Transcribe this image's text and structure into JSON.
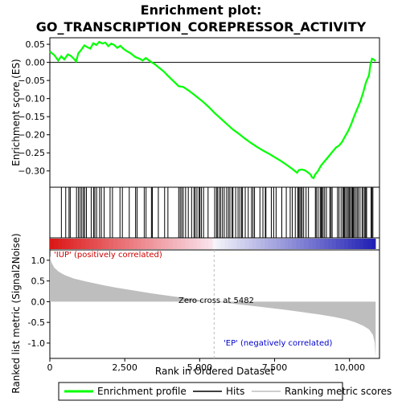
{
  "title_line1": "Enrichment plot:",
  "title_line2": "GO_TRANSCRIPTION_COREPRESSOR_ACTIVITY",
  "colors": {
    "enrichment_line": "#00ff00",
    "hits": "#000000",
    "ranking_fill": "#bebebe",
    "pos_label": "#cc0000",
    "neg_label": "#0000cc",
    "zero_cross_line": "#bbbbbb"
  },
  "chart_data": [
    {
      "type": "line",
      "name": "enrichment",
      "ylabel": "Enrichment score (ES)",
      "xlim": [
        0,
        11000
      ],
      "ylim": [
        -0.345,
        0.068
      ],
      "yticks": [
        0.05,
        0.0,
        -0.05,
        -0.1,
        -0.15,
        -0.2,
        -0.25,
        -0.3
      ],
      "ytick_labels": [
        "0.05",
        "0.00",
        "−0.05",
        "−0.10",
        "−0.15",
        "−0.20",
        "−0.25",
        "−0.30"
      ],
      "points": [
        [
          0,
          0.03
        ],
        [
          150,
          0.02
        ],
        [
          280,
          0.005
        ],
        [
          380,
          0.017
        ],
        [
          480,
          0.008
        ],
        [
          600,
          0.022
        ],
        [
          700,
          0.018
        ],
        [
          800,
          0.01
        ],
        [
          880,
          0.003
        ],
        [
          950,
          0.025
        ],
        [
          1050,
          0.035
        ],
        [
          1150,
          0.047
        ],
        [
          1250,
          0.042
        ],
        [
          1350,
          0.038
        ],
        [
          1450,
          0.053
        ],
        [
          1550,
          0.048
        ],
        [
          1650,
          0.057
        ],
        [
          1750,
          0.052
        ],
        [
          1850,
          0.055
        ],
        [
          1950,
          0.045
        ],
        [
          2050,
          0.052
        ],
        [
          2150,
          0.048
        ],
        [
          2250,
          0.04
        ],
        [
          2350,
          0.046
        ],
        [
          2450,
          0.038
        ],
        [
          2550,
          0.032
        ],
        [
          2700,
          0.025
        ],
        [
          2850,
          0.015
        ],
        [
          3000,
          0.01
        ],
        [
          3100,
          0.005
        ],
        [
          3200,
          0.012
        ],
        [
          3350,
          0.003
        ],
        [
          3500,
          -0.005
        ],
        [
          3650,
          -0.015
        ],
        [
          3800,
          -0.025
        ],
        [
          3950,
          -0.038
        ],
        [
          4100,
          -0.05
        ],
        [
          4200,
          -0.058
        ],
        [
          4300,
          -0.066
        ],
        [
          4450,
          -0.068
        ],
        [
          4600,
          -0.076
        ],
        [
          4750,
          -0.085
        ],
        [
          4900,
          -0.095
        ],
        [
          5100,
          -0.108
        ],
        [
          5300,
          -0.123
        ],
        [
          5500,
          -0.14
        ],
        [
          5700,
          -0.155
        ],
        [
          5900,
          -0.17
        ],
        [
          6100,
          -0.185
        ],
        [
          6300,
          -0.197
        ],
        [
          6500,
          -0.21
        ],
        [
          6700,
          -0.222
        ],
        [
          6900,
          -0.233
        ],
        [
          7100,
          -0.243
        ],
        [
          7300,
          -0.252
        ],
        [
          7500,
          -0.262
        ],
        [
          7700,
          -0.272
        ],
        [
          7900,
          -0.283
        ],
        [
          8100,
          -0.295
        ],
        [
          8250,
          -0.305
        ],
        [
          8300,
          -0.298
        ],
        [
          8400,
          -0.296
        ],
        [
          8500,
          -0.298
        ],
        [
          8600,
          -0.303
        ],
        [
          8700,
          -0.31
        ],
        [
          8750,
          -0.318
        ],
        [
          8800,
          -0.32
        ],
        [
          8850,
          -0.31
        ],
        [
          8950,
          -0.3
        ],
        [
          9050,
          -0.285
        ],
        [
          9150,
          -0.275
        ],
        [
          9250,
          -0.265
        ],
        [
          9350,
          -0.255
        ],
        [
          9450,
          -0.245
        ],
        [
          9550,
          -0.235
        ],
        [
          9650,
          -0.23
        ],
        [
          9750,
          -0.22
        ],
        [
          9850,
          -0.205
        ],
        [
          9950,
          -0.19
        ],
        [
          10050,
          -0.172
        ],
        [
          10150,
          -0.15
        ],
        [
          10250,
          -0.13
        ],
        [
          10350,
          -0.11
        ],
        [
          10450,
          -0.085
        ],
        [
          10550,
          -0.055
        ],
        [
          10650,
          -0.035
        ],
        [
          10700,
          -0.005
        ],
        [
          10750,
          0.01
        ],
        [
          10800,
          0.008
        ],
        [
          10870,
          0.004
        ]
      ]
    },
    {
      "type": "rug",
      "name": "hits",
      "positions": [
        385,
        530,
        640,
        680,
        890,
        955,
        1010,
        1065,
        1120,
        1160,
        1220,
        1380,
        1460,
        1500,
        1560,
        1660,
        1720,
        1810,
        2010,
        2090,
        2340,
        2420,
        2650,
        2860,
        2910,
        3150,
        3210,
        3390,
        3420,
        3620,
        3830,
        3940,
        4300,
        4350,
        4400,
        4450,
        4530,
        4620,
        4730,
        4810,
        4850,
        4910,
        4980,
        5010,
        5060,
        5130,
        5280,
        5500,
        5560,
        5590,
        5650,
        5700,
        5760,
        5820,
        5900,
        5960,
        6010,
        6080,
        6110,
        6200,
        6280,
        6340,
        6400,
        6430,
        6520,
        6620,
        6730,
        6780,
        6830,
        7010,
        7110,
        7190,
        7210,
        7390,
        7470,
        7550,
        7740,
        7890,
        8020,
        8090,
        8190,
        8270,
        8300,
        8340,
        8380,
        8420,
        8470,
        8550,
        8630,
        8860,
        8890,
        8950,
        9020,
        9050,
        9080,
        9120,
        9170,
        9230,
        9340,
        9380,
        9420,
        9600,
        9650,
        9720,
        9780,
        9800,
        9830,
        9870,
        9920,
        9960,
        10000,
        10030,
        10080,
        10100,
        10120,
        10150,
        10200,
        10250,
        10290,
        10350,
        10420,
        10460,
        10510,
        10540,
        10570,
        10720,
        10750,
        10780
      ]
    },
    {
      "type": "area",
      "name": "ranking_metric",
      "xlabel": "Rank in Ordered Dataset",
      "ylabel": "Ranked list metric (Signal2Noise)",
      "xlim": [
        0,
        11000
      ],
      "ylim": [
        -1.37,
        1.25
      ],
      "xticks": [
        0,
        2500,
        5000,
        7500,
        10000
      ],
      "xtick_labels": [
        "0",
        "2,500",
        "5,000",
        "7,500",
        "10,000"
      ],
      "yticks": [
        1.0,
        0.5,
        0.0,
        -0.5,
        -1.0
      ],
      "ytick_labels": [
        "1.0",
        "0.5",
        "0.0",
        "-0.5",
        "-1.0"
      ],
      "points": [
        [
          0,
          1.1
        ],
        [
          50,
          0.95
        ],
        [
          150,
          0.82
        ],
        [
          300,
          0.72
        ],
        [
          500,
          0.64
        ],
        [
          800,
          0.56
        ],
        [
          1200,
          0.49
        ],
        [
          1700,
          0.41
        ],
        [
          2200,
          0.34
        ],
        [
          2800,
          0.27
        ],
        [
          3400,
          0.2
        ],
        [
          4000,
          0.14
        ],
        [
          4600,
          0.08
        ],
        [
          5100,
          0.03
        ],
        [
          5482,
          0.0
        ],
        [
          6000,
          -0.04
        ],
        [
          6600,
          -0.09
        ],
        [
          7200,
          -0.14
        ],
        [
          7800,
          -0.19
        ],
        [
          8400,
          -0.25
        ],
        [
          9000,
          -0.31
        ],
        [
          9500,
          -0.37
        ],
        [
          9900,
          -0.43
        ],
        [
          10200,
          -0.5
        ],
        [
          10450,
          -0.58
        ],
        [
          10650,
          -0.67
        ],
        [
          10780,
          -0.8
        ],
        [
          10840,
          -0.98
        ],
        [
          10870,
          -1.35
        ]
      ]
    }
  ],
  "zero_cross_label": "Zero cross at 5482",
  "zero_cross_rank": 5482,
  "pos_label": "'IUP' (positively correlated)",
  "neg_label": "'EP' (negatively correlated)",
  "legend": {
    "enrichment": "Enrichment profile",
    "hits": "Hits",
    "ranking": "Ranking metric scores"
  }
}
